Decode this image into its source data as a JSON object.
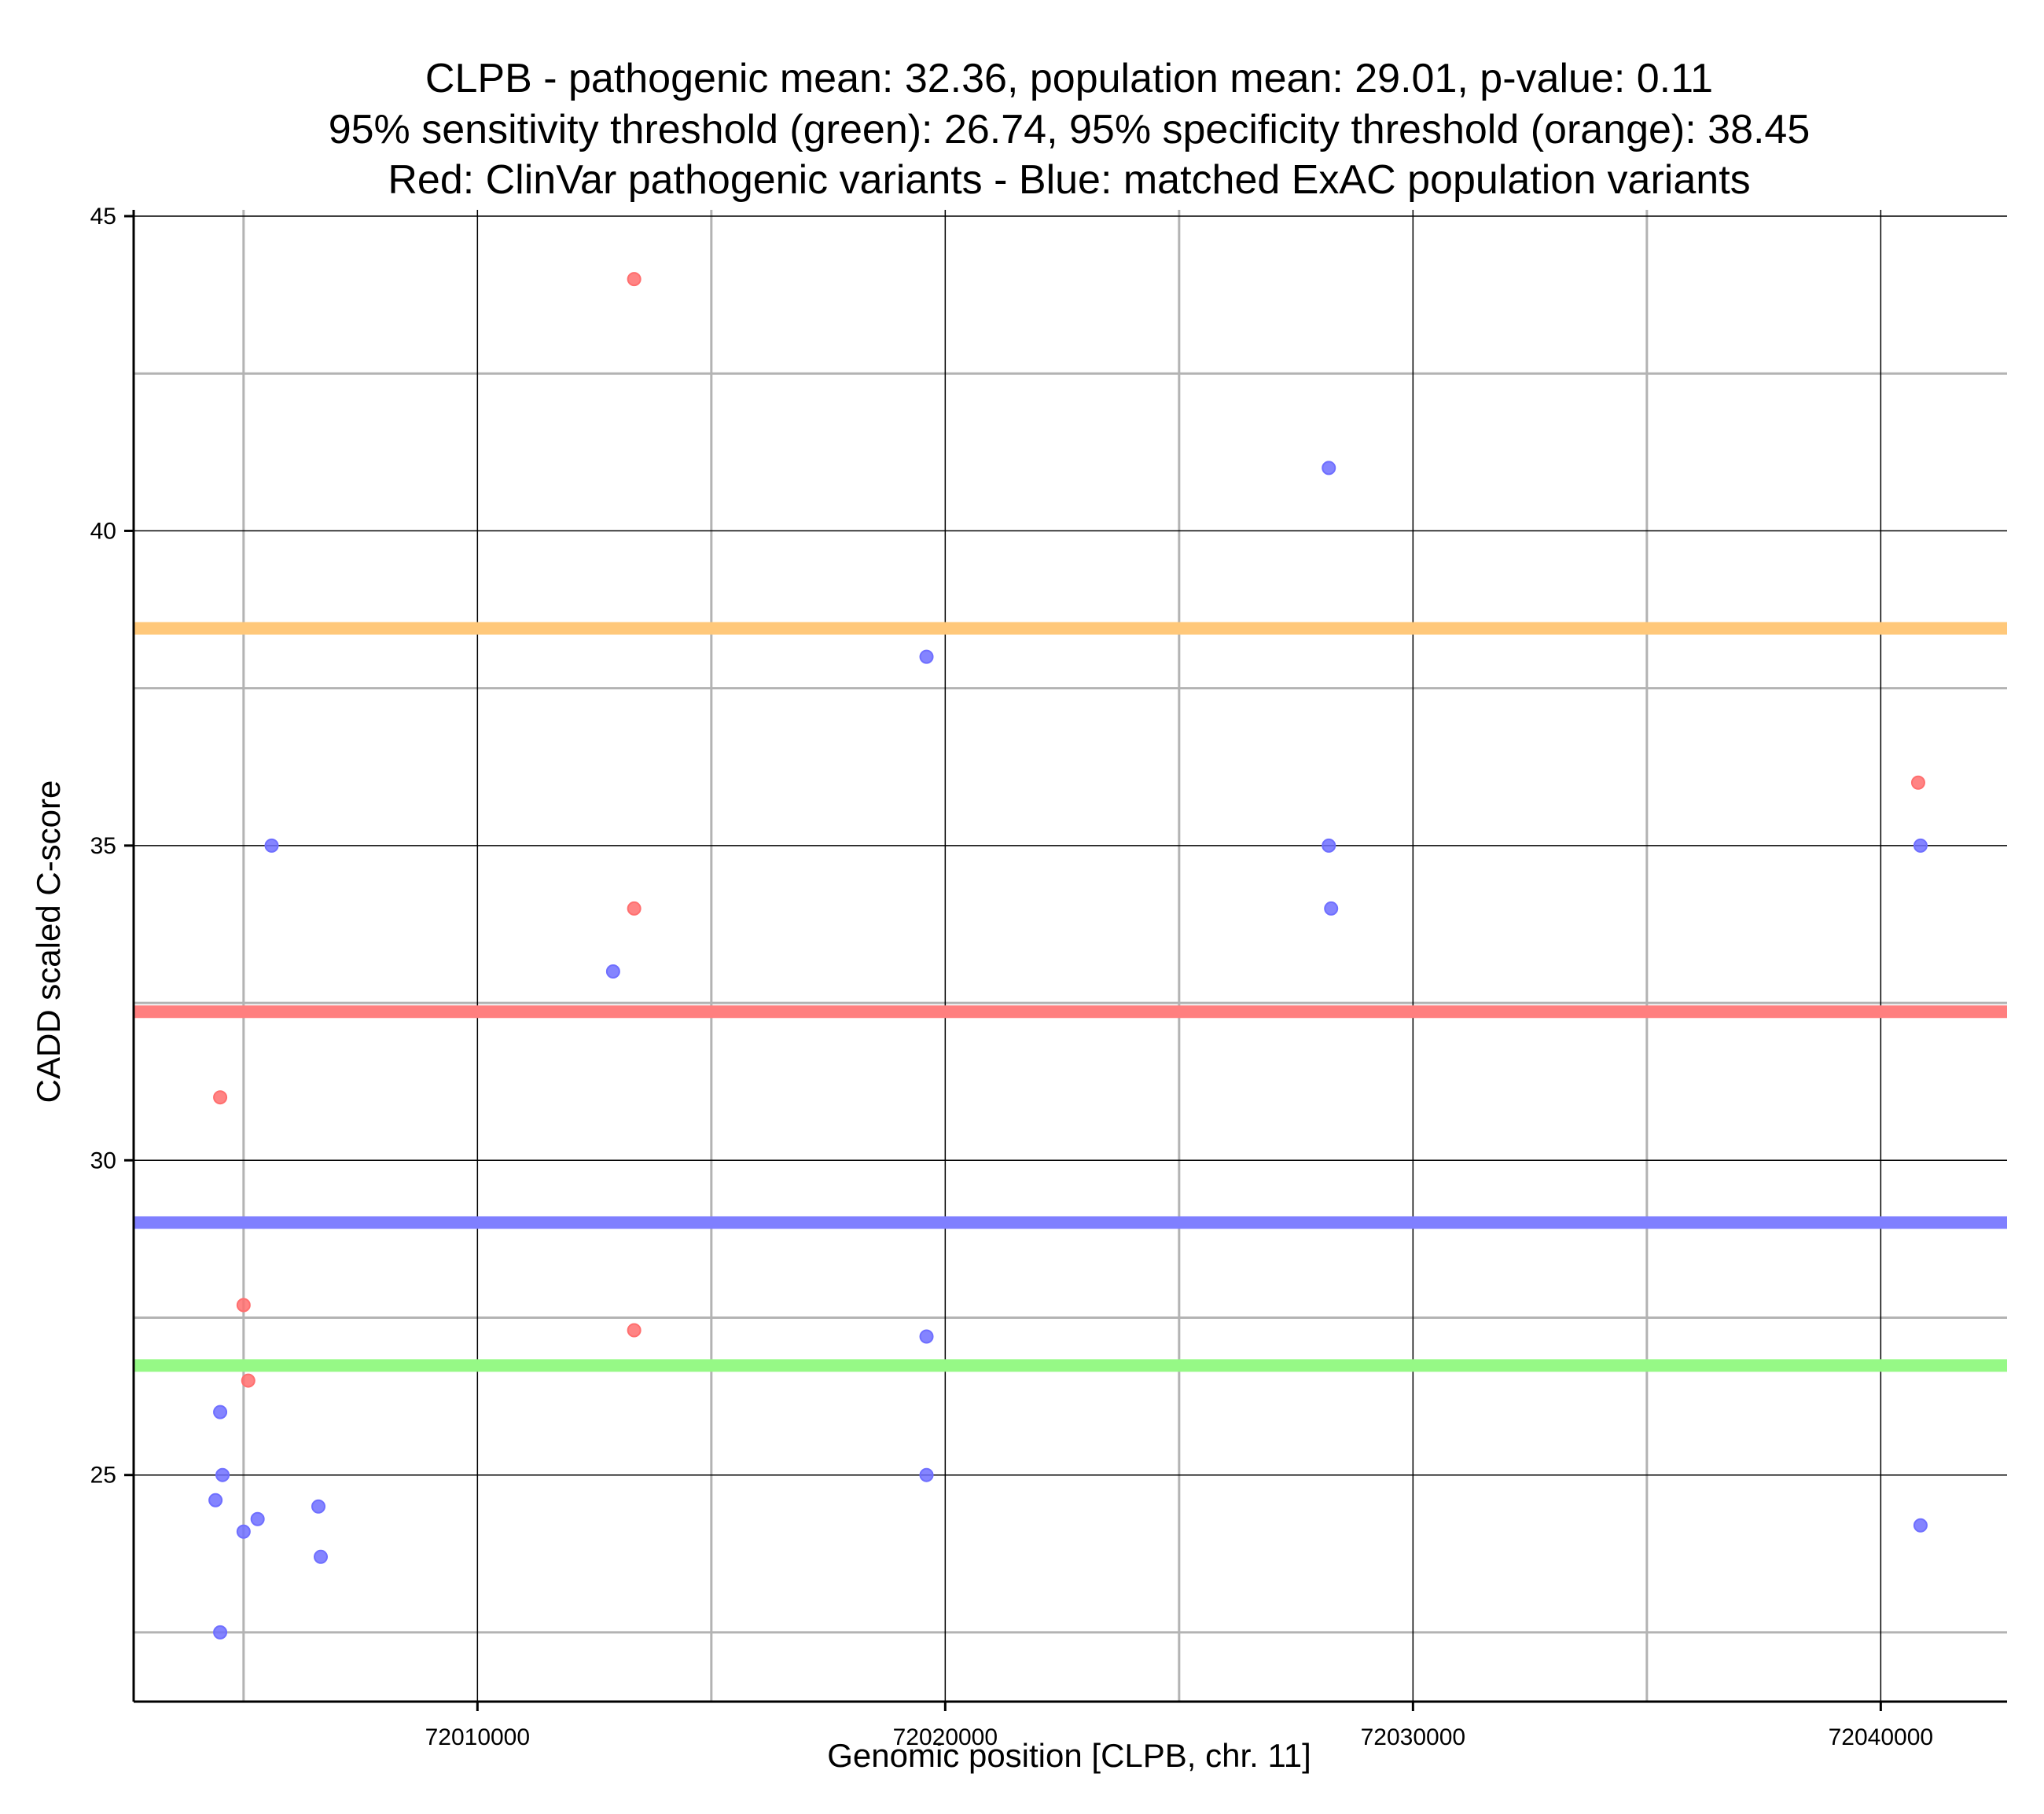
{
  "chart_data": {
    "type": "scatter",
    "title_lines": [
      "CLPB - pathogenic mean: 32.36, population mean: 29.01, p-value: 0.11",
      "95% sensitivity threshold (green): 26.74, 95% specificity threshold (orange): 38.45",
      "Red: ClinVar pathogenic variants - Blue: matched ExAC population variants"
    ],
    "xlabel": "Genomic position [CLPB, chr. 11]",
    "ylabel": "CADD scaled C-score",
    "xlim": [
      72002650,
      72042700
    ],
    "ylim": [
      21.4,
      45.1
    ],
    "x_ticks": [
      72010000,
      72020000,
      72030000,
      72040000
    ],
    "x_tick_labels": [
      "72010000",
      "72020000",
      "72030000",
      "72040000"
    ],
    "x_minor_grid": [
      72005000,
      72015000,
      72025000,
      72035000
    ],
    "y_ticks": [
      25,
      30,
      35,
      40,
      45
    ],
    "y_tick_labels": [
      "25",
      "30",
      "35",
      "40",
      "45"
    ],
    "y_minor_grid": [
      22.5,
      27.5,
      32.5,
      37.5,
      42.5
    ],
    "grid": true,
    "hlines": [
      {
        "label": "95% specificity threshold",
        "value": 38.45,
        "color": "#ffc87a"
      },
      {
        "label": "pathogenic mean",
        "value": 32.36,
        "color": "#ff7f7f"
      },
      {
        "label": "population mean",
        "value": 29.01,
        "color": "#7f7fff"
      },
      {
        "label": "95% sensitivity threshold",
        "value": 26.74,
        "color": "#96f986"
      }
    ],
    "series": [
      {
        "name": "ClinVar pathogenic variants",
        "color": "#ff6f6f",
        "points": [
          [
            72013350,
            44.0
          ],
          [
            72013350,
            34.0
          ],
          [
            72013350,
            27.3
          ],
          [
            72004500,
            31.0
          ],
          [
            72005000,
            27.7
          ],
          [
            72005100,
            26.5
          ],
          [
            72040800,
            36.0
          ]
        ]
      },
      {
        "name": "matched ExAC population variants",
        "color": "#6f6fff",
        "points": [
          [
            72028200,
            41.0
          ],
          [
            72019600,
            38.0
          ],
          [
            72005600,
            35.0
          ],
          [
            72028200,
            35.0
          ],
          [
            72028250,
            34.0
          ],
          [
            72012900,
            33.0
          ],
          [
            72019600,
            27.2
          ],
          [
            72004500,
            26.0
          ],
          [
            72004550,
            25.0
          ],
          [
            72019600,
            25.0
          ],
          [
            72004400,
            24.6
          ],
          [
            72006600,
            24.5
          ],
          [
            72005300,
            24.3
          ],
          [
            72005000,
            24.1
          ],
          [
            72006650,
            23.7
          ],
          [
            72004500,
            22.5
          ],
          [
            72040850,
            35.0
          ],
          [
            72040850,
            24.2
          ]
        ]
      }
    ]
  }
}
